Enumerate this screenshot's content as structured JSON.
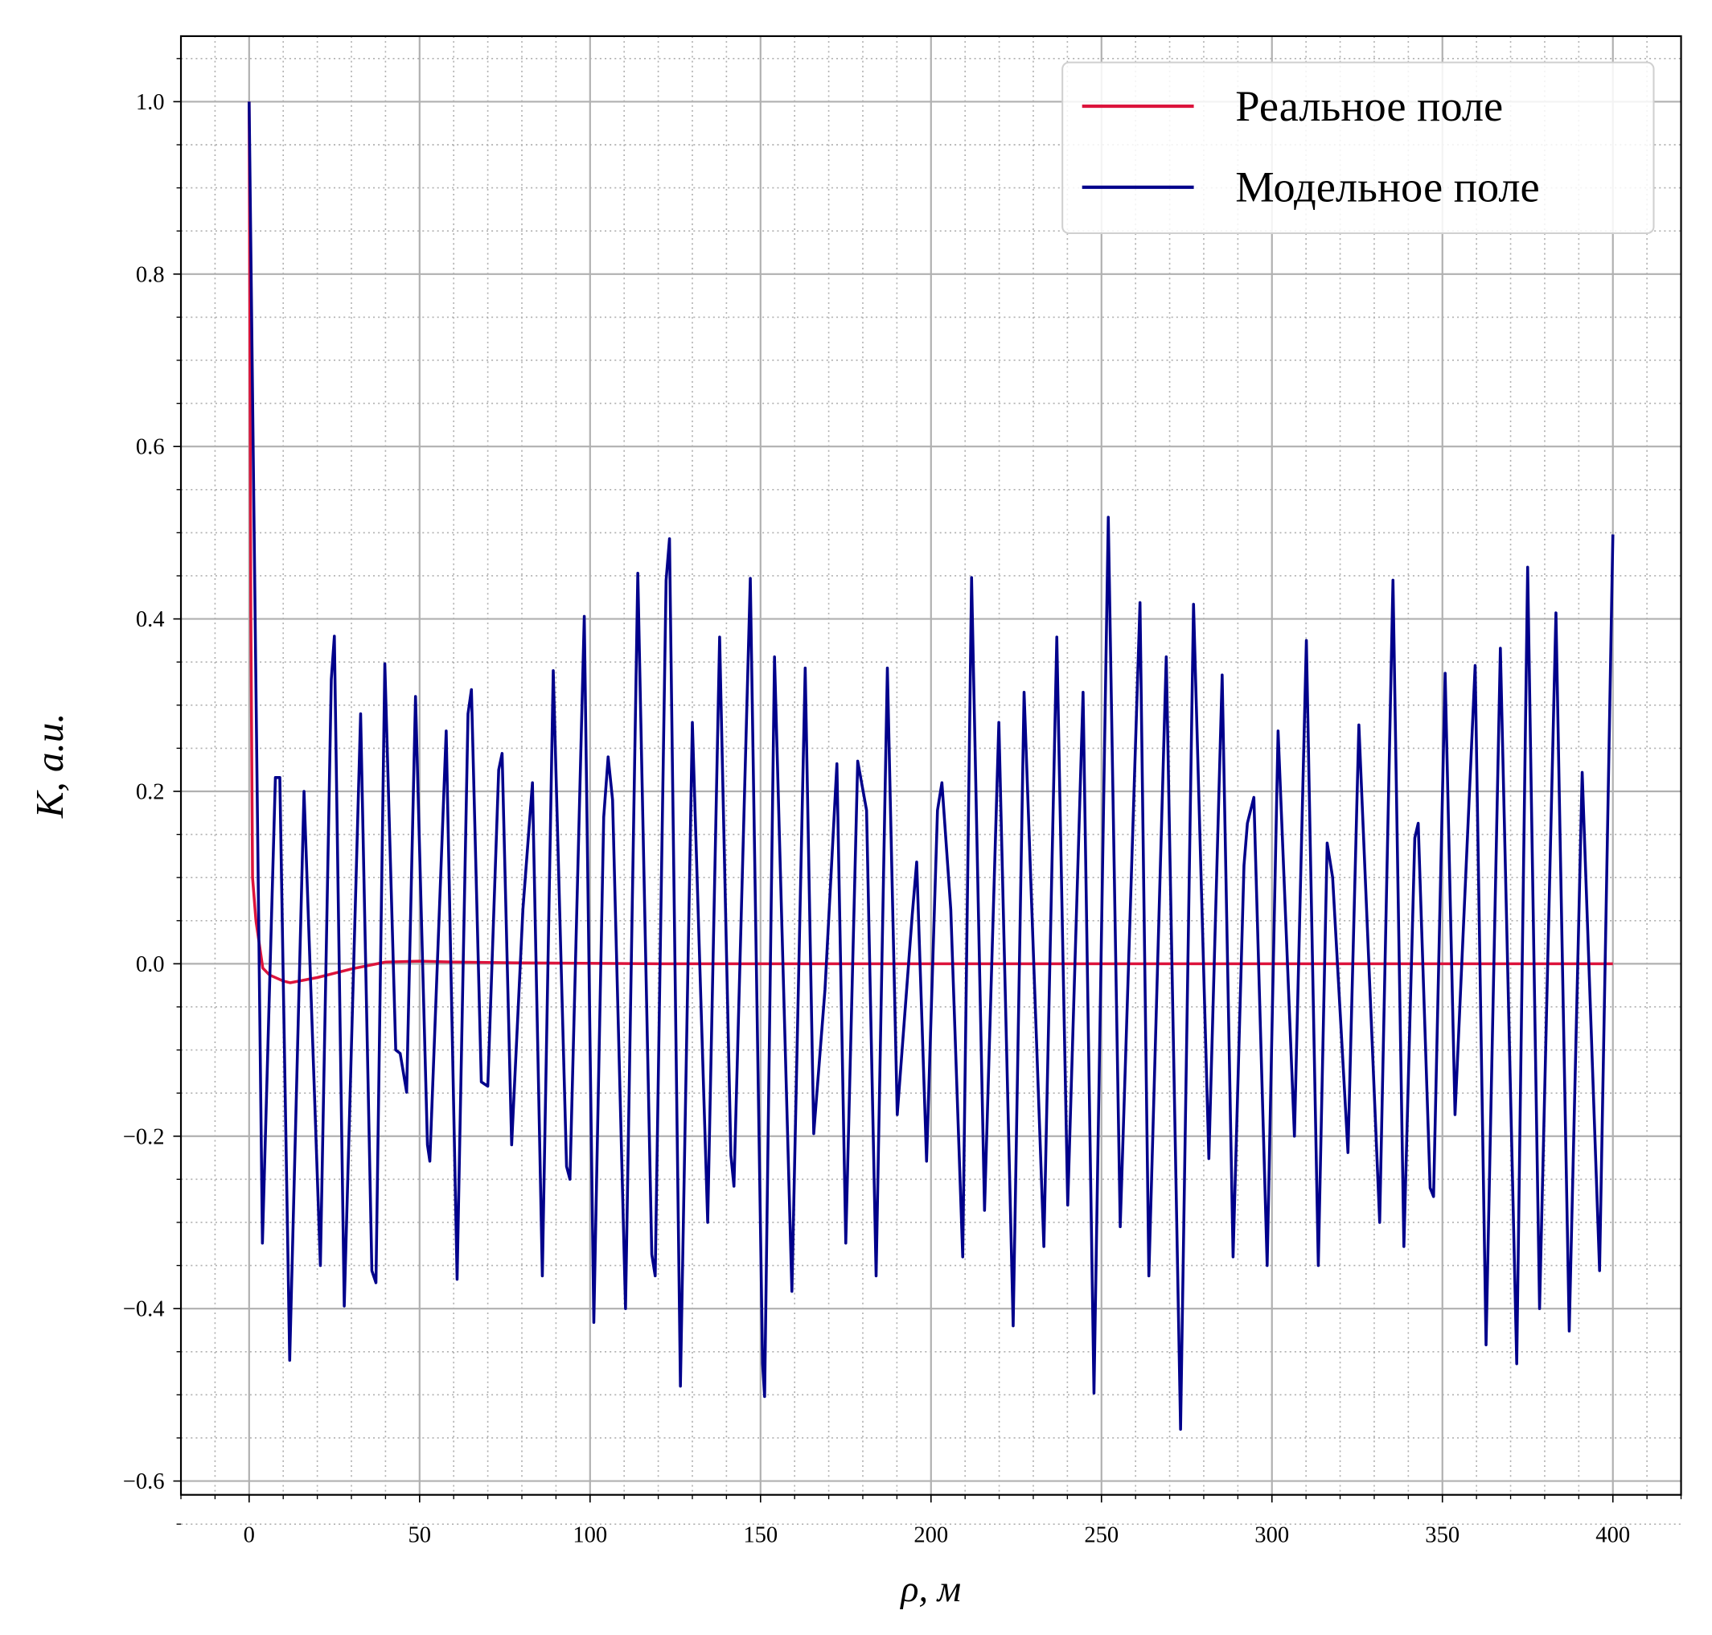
{
  "chart_data": {
    "type": "line",
    "xlabel": "ρ, м",
    "ylabel": "K, a.u.",
    "xlim": [
      -20,
      420
    ],
    "ylim": [
      -0.616,
      1.076
    ],
    "xticks": [
      0,
      50,
      100,
      150,
      200,
      250,
      300,
      350,
      400
    ],
    "yticks": [
      {
        "value": -0.6,
        "label": "−0.6"
      },
      {
        "value": -0.4,
        "label": "−0.4"
      },
      {
        "value": -0.2,
        "label": "−0.2"
      },
      {
        "value": 0,
        "label": "0.0"
      },
      0.2,
      0.4,
      0.6,
      0.8,
      {
        "value": 1.0,
        "label": "1.0"
      }
    ],
    "grid": true,
    "minor_grid": true,
    "legend": "upper right",
    "series": [
      {
        "name": "Реальное поле",
        "color": "#dc143c",
        "x": [
          0,
          0.5,
          1,
          2,
          4,
          6,
          10,
          12,
          20,
          30,
          40,
          50,
          60,
          80,
          120,
          200,
          300,
          400
        ],
        "values": [
          1.0,
          0.4,
          0.1,
          0.05,
          -0.005,
          -0.013,
          -0.02,
          -0.022,
          -0.016,
          -0.006,
          0.002,
          0.003,
          0.002,
          0.001,
          0,
          0,
          0,
          0
        ]
      },
      {
        "name": "Модельное поле",
        "color": "#00008b",
        "x": [
          0,
          3.9,
          7.7,
          9.0,
          11.9,
          16.1,
          20.9,
          24.1,
          25.0,
          27.9,
          32.7,
          36.0,
          37.2,
          39.8,
          43.0,
          44.3,
          46.2,
          48.8,
          52.3,
          53.0,
          57.8,
          61.0,
          64.2,
          65.2,
          68.1,
          70.0,
          73.2,
          74.2,
          77.0,
          80.3,
          83.1,
          86.0,
          89.2,
          93.1,
          94.1,
          98.3,
          101.1,
          104.0,
          105.3,
          106.6,
          110.4,
          114.0,
          118.1,
          119.1,
          122.3,
          123.3,
          126.5,
          130.0,
          134.5,
          138.0,
          141.3,
          142.2,
          147.0,
          150.6,
          151.2,
          154.1,
          159.2,
          163.1,
          165.6,
          168.9,
          172.4,
          175.0,
          178.5,
          181.1,
          183.9,
          187.2,
          190.1,
          194.5,
          195.8,
          198.7,
          201.9,
          203.2,
          205.8,
          209.3,
          211.9,
          215.7,
          219.9,
          224.1,
          227.3,
          233.1,
          236.9,
          240.1,
          244.6,
          247.8,
          252.0,
          255.5,
          261.3,
          263.9,
          269.0,
          273.2,
          277.0,
          281.5,
          285.4,
          288.6,
          291.8,
          292.8,
          294.7,
          298.6,
          301.8,
          306.6,
          310.1,
          313.6,
          316.2,
          317.8,
          322.3,
          325.5,
          331.6,
          335.5,
          338.7,
          341.9,
          342.9,
          346.4,
          347.4,
          350.8,
          353.7,
          359.6,
          362.8,
          367.0,
          371.8,
          375.0,
          378.5,
          383.3,
          387.2,
          391.0,
          396.1,
          400
        ],
        "values": [
          1.0,
          -0.324,
          0.216,
          0.216,
          -0.46,
          0.2,
          -0.35,
          0.33,
          0.38,
          -0.397,
          0.29,
          -0.356,
          -0.37,
          0.348,
          -0.1,
          -0.104,
          -0.149,
          0.31,
          -0.21,
          -0.229,
          0.27,
          -0.366,
          0.29,
          0.318,
          -0.137,
          -0.142,
          0.225,
          0.244,
          -0.21,
          0.063,
          0.21,
          -0.362,
          0.34,
          -0.235,
          -0.25,
          0.403,
          -0.416,
          0.17,
          0.24,
          0.19,
          -0.4,
          0.453,
          -0.337,
          -0.362,
          0.445,
          0.493,
          -0.49,
          0.28,
          -0.3,
          0.379,
          -0.222,
          -0.258,
          0.447,
          -0.464,
          -0.502,
          0.356,
          -0.38,
          0.343,
          -0.197,
          -0.03,
          0.232,
          -0.324,
          0.235,
          0.178,
          -0.362,
          0.343,
          -0.175,
          0.057,
          0.118,
          -0.229,
          0.178,
          0.21,
          0.063,
          -0.34,
          0.448,
          -0.286,
          0.28,
          -0.42,
          0.315,
          -0.328,
          0.379,
          -0.28,
          0.315,
          -0.498,
          0.518,
          -0.305,
          0.419,
          -0.362,
          0.356,
          -0.54,
          0.417,
          -0.226,
          0.335,
          -0.34,
          0.114,
          0.163,
          0.193,
          -0.35,
          0.27,
          -0.2,
          0.375,
          -0.35,
          0.14,
          0.1,
          -0.219,
          0.277,
          -0.3,
          0.445,
          -0.328,
          0.146,
          0.163,
          -0.26,
          -0.27,
          0.337,
          -0.175,
          0.346,
          -0.442,
          0.366,
          -0.464,
          0.46,
          -0.4,
          0.407,
          -0.426,
          0.222,
          -0.356,
          0.498
        ]
      }
    ]
  }
}
